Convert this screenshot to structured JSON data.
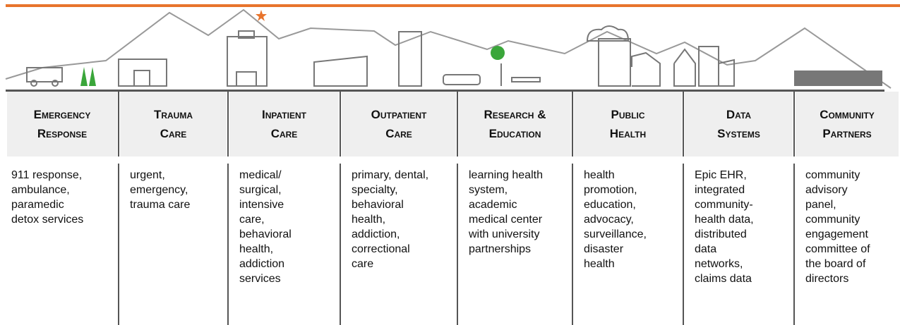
{
  "columns": [
    {
      "header": [
        "Emergency",
        "Response"
      ],
      "body": [
        "911 response,",
        "ambulance,",
        "paramedic",
        "detox services"
      ]
    },
    {
      "header": [
        "Trauma",
        "Care"
      ],
      "body": [
        "urgent,",
        "emergency,",
        "trauma care"
      ]
    },
    {
      "header": [
        "Inpatient",
        "Care"
      ],
      "body": [
        "medical/",
        "surgical,",
        "intensive",
        "care,",
        "behavioral",
        "health,",
        "addiction",
        "services"
      ]
    },
    {
      "header": [
        "Outpatient",
        "Care"
      ],
      "body": [
        "primary, dental,",
        "specialty,",
        "behavioral",
        "health,",
        "addiction,",
        "correctional",
        "care"
      ]
    },
    {
      "header": [
        "Research &",
        "Education"
      ],
      "body": [
        "learning health",
        "system,",
        "academic",
        "medical center",
        "with university",
        "partnerships"
      ]
    },
    {
      "header": [
        "Public",
        "Health"
      ],
      "body": [
        "health",
        "promotion,",
        "education,",
        "advocacy,",
        "surveillance,",
        "disaster",
        "health"
      ]
    },
    {
      "header": [
        "Data",
        "Systems"
      ],
      "body": [
        "Epic EHR,",
        "integrated",
        "community-",
        "health data,",
        "distributed",
        "data",
        "networks,",
        "claims data"
      ]
    },
    {
      "header": [
        "Community",
        "Partners"
      ],
      "body": [
        "community",
        "advisory",
        "panel,",
        "community",
        "engagement",
        "committee of",
        "the board of",
        "directors"
      ]
    }
  ]
}
